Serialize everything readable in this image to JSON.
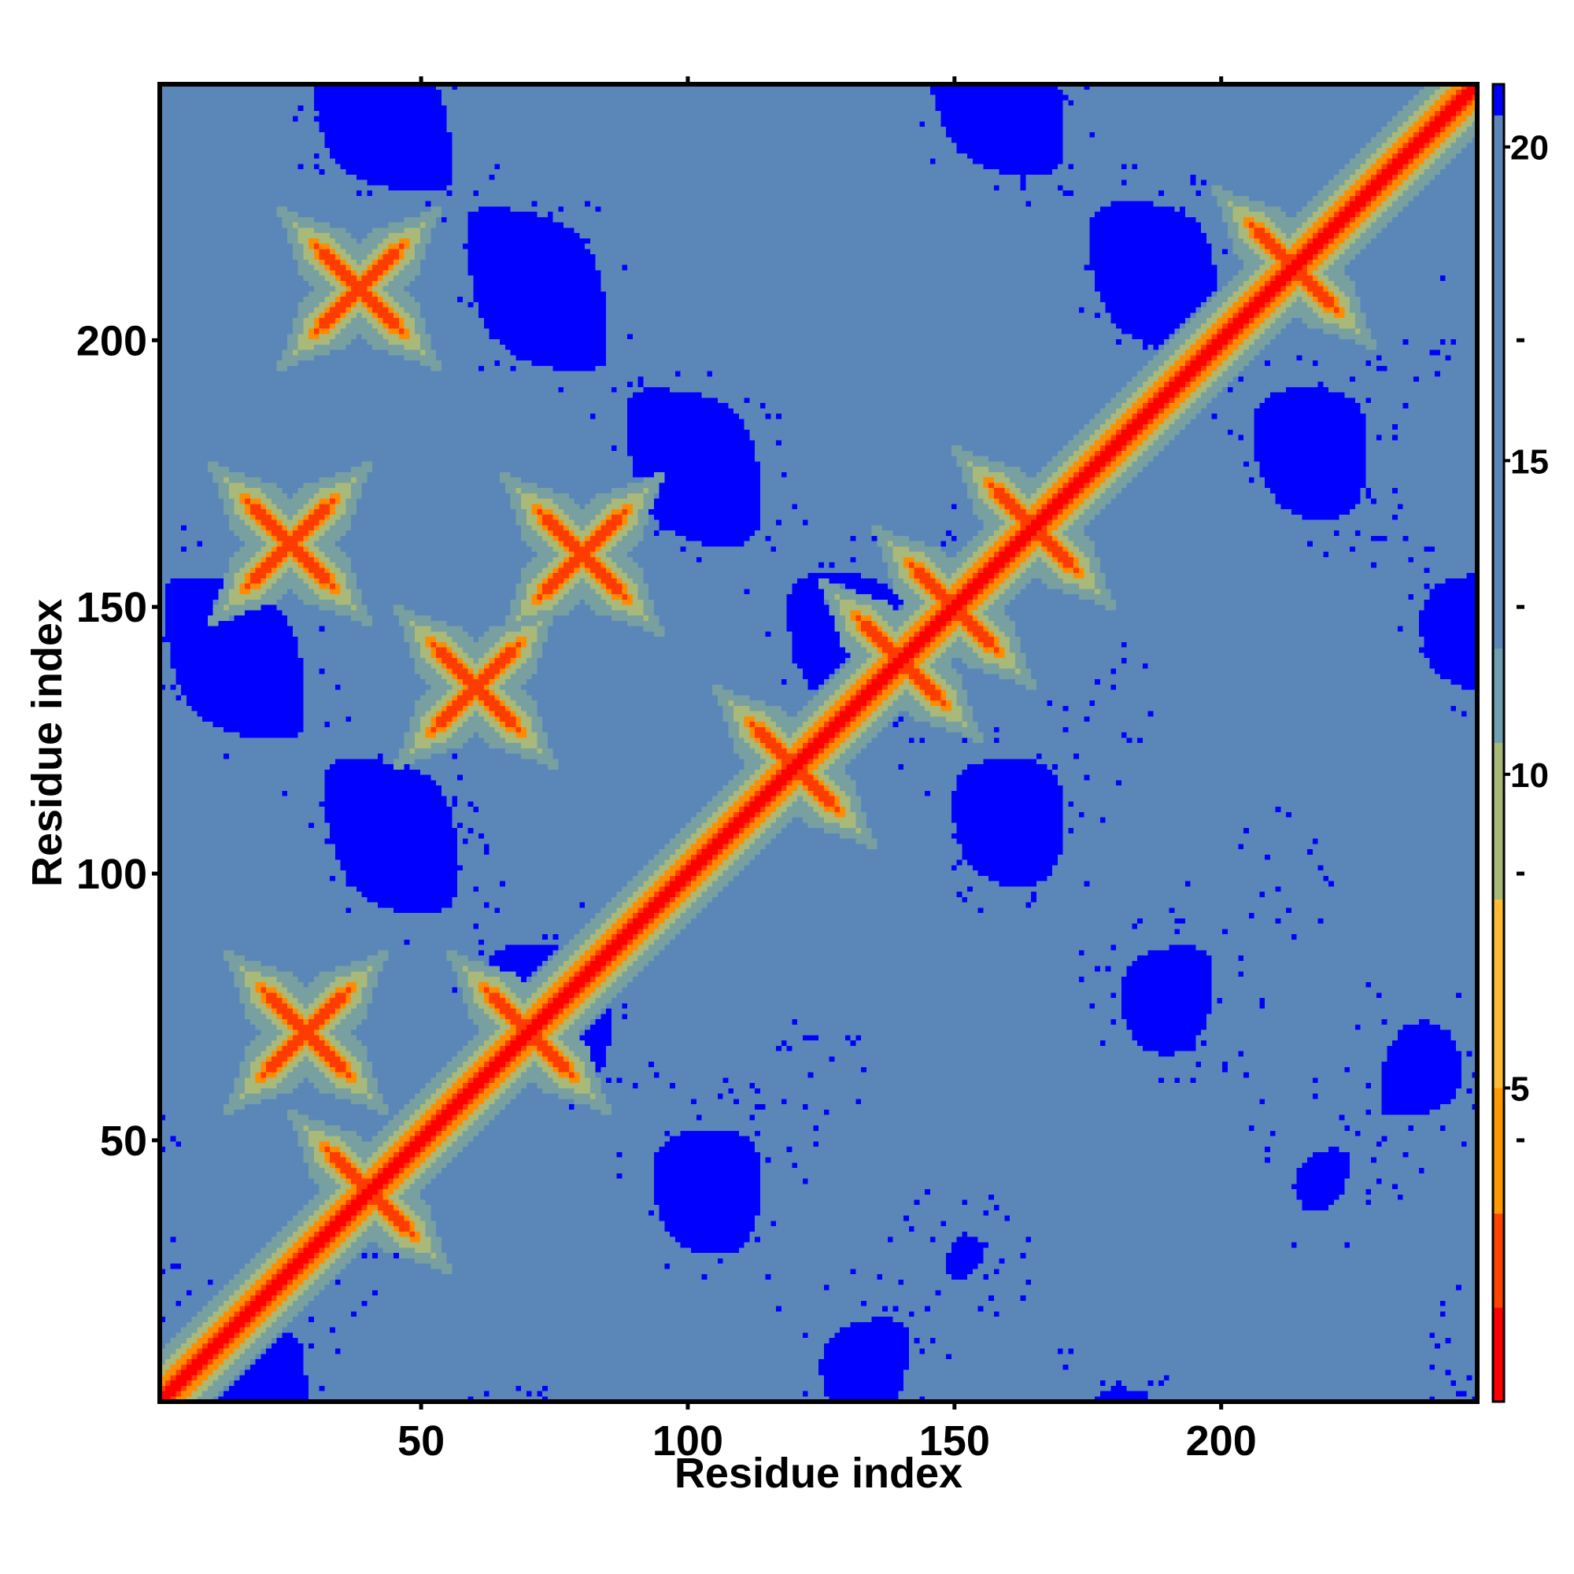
{
  "chart_data": {
    "type": "heatmap",
    "description_kind": "residue distance map",
    "title": "",
    "xlabel": "Residue index",
    "ylabel": "Residue index",
    "x_range": [
      1,
      248
    ],
    "y_range": [
      1,
      248
    ],
    "x_ticks": [
      50,
      100,
      150,
      200
    ],
    "y_ticks": [
      50,
      100,
      150,
      200
    ],
    "x_tick_labels": [
      "50",
      "100",
      "150",
      "200"
    ],
    "y_tick_labels": [
      "50",
      "100",
      "150",
      "200"
    ],
    "colorbar": {
      "ticks": [
        5,
        10,
        15,
        20
      ],
      "tick_labels": [
        "5",
        "10",
        "15",
        "20"
      ],
      "range": [
        0,
        21
      ],
      "colors": [
        "#ff0000",
        "#ff4400",
        "#ff9900",
        "#ffbb33",
        "#a8b878",
        "#6f9fb0",
        "#5b87b8",
        "#0000ff"
      ]
    },
    "colors": {
      "near": "#ff0000",
      "close": "#ff8c00",
      "mid": "#a9b97a",
      "far": "#5b87b8",
      "very_far": "#0000ff",
      "frame": "#000000"
    },
    "features": {
      "diagonal": "zero distance along x = y",
      "contact_crosses_x": [
        40,
        70,
        120,
        140,
        150,
        165,
        214,
        38,
        80,
        60,
        25,
        28
      ],
      "contact_crosses_y": [
        40,
        70,
        120,
        140,
        150,
        165,
        214,
        210,
        160,
        135,
        162,
        70
      ]
    }
  }
}
